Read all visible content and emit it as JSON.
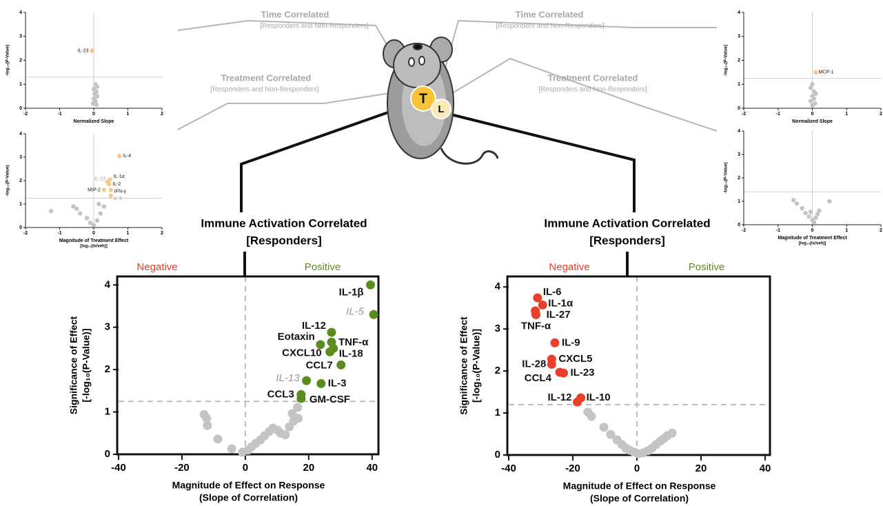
{
  "labels": {
    "time_left": {
      "title": "Time Correlated",
      "subtitle": "[Responders and Non-Responders]"
    },
    "time_right": {
      "title": "Time Correlated",
      "subtitle": "[Responders and Non-Responders]"
    },
    "treatment_left": {
      "title": "Treatment Correlated",
      "subtitle": "[Responders and Non-Responders]"
    },
    "treatment_right": {
      "title": "Treatment Correlated",
      "subtitle": "[Responders and Non-Responders]"
    },
    "mouse": {
      "tumor": "T",
      "lymph_node": "L"
    }
  },
  "chart_data": [
    {
      "type": "scatter",
      "title": "Immune Activation Correlated",
      "subtitle": "[Responders]",
      "negative_label": "Negative",
      "positive_label": "Positive",
      "negative_color": "#e8402a",
      "positive_color": "#5b8c1f",
      "xlabel": "Magnitude of Effect on Response",
      "xlabel2": "(Slope of Correlation)",
      "ylabel": "Significance of Effect",
      "ylabel2": "[-log₁₀(P-Value)]",
      "xlim": [
        -40,
        42
      ],
      "xticks": [
        -40,
        -20,
        0,
        20,
        40
      ],
      "ylim": [
        0,
        4.2
      ],
      "yticks": [
        0,
        1,
        2,
        3,
        4
      ],
      "threshold": 1.25,
      "xref": 0,
      "series": [
        {
          "color": "#5b8c1f",
          "labels": [
            "IL-1β",
            "IL-5",
            "IL-12",
            "Eotaxin",
            "TNF-α",
            "CXCL10",
            "IL-18",
            "CCL7",
            "IL-13",
            "IL-3",
            "CCL3",
            "GM-CSF"
          ],
          "label_muted": [
            false,
            true,
            false,
            false,
            false,
            false,
            false,
            false,
            true,
            false,
            false,
            false
          ],
          "x": [
            39.5,
            40.5,
            27.2,
            23.7,
            27.2,
            26.7,
            27.8,
            30.2,
            19.3,
            23.9,
            17.6,
            17.6
          ],
          "values": [
            4.0,
            3.3,
            2.88,
            2.59,
            2.65,
            2.42,
            2.5,
            2.11,
            1.74,
            1.67,
            1.41,
            1.32
          ]
        },
        {
          "color": "#c4c4c4",
          "x": [
            -13.0,
            -12.2,
            -12.0,
            -8.7,
            -4.3,
            -0.9,
            0.9,
            2.0,
            3.3,
            4.8,
            6.1,
            7.6,
            8.7,
            10.2,
            11.1,
            12.6,
            13.9,
            14.8,
            16.5,
            15.2,
            16.7
          ],
          "values": [
            0.94,
            0.85,
            0.68,
            0.36,
            0.13,
            0.05,
            0.1,
            0.18,
            0.26,
            0.34,
            0.44,
            0.54,
            0.62,
            0.57,
            0.5,
            0.46,
            0.65,
            0.96,
            1.11,
            0.78,
            0.85
          ]
        }
      ]
    },
    {
      "type": "scatter",
      "title": "Immune Activation Correlated",
      "subtitle": "[Responders]",
      "negative_label": "Negative",
      "positive_label": "Positive",
      "negative_color": "#e8402a",
      "positive_color": "#5b8c1f",
      "xlabel": "Magnitude of Effect on Response",
      "xlabel2": "(Slope of Correlation)",
      "ylabel": "Significance of Effect",
      "ylabel2": "[-log₁₀(P-Value)]",
      "xlim": [
        -40,
        41.5
      ],
      "xticks": [
        -40,
        -20,
        0,
        20,
        40
      ],
      "ylim": [
        0,
        4.25
      ],
      "yticks": [
        0,
        1,
        2,
        3,
        4
      ],
      "threshold": 1.2,
      "xref": 0,
      "series": [
        {
          "color": "#e8402a",
          "labels": [
            "IL-6",
            "IL-1α",
            "IL-27",
            "TNF-α",
            "IL-9",
            "CXCL5",
            "IL-28",
            "CCL4",
            "IL-23",
            "IL-12",
            "IL-10"
          ],
          "label_muted": [
            false,
            false,
            false,
            false,
            false,
            false,
            false,
            false,
            false,
            false,
            false
          ],
          "x": [
            -31.0,
            -29.4,
            -31.7,
            -31.5,
            -25.6,
            -26.6,
            -26.6,
            -24.1,
            -22.9,
            -18.6,
            -17.5
          ],
          "values": [
            3.74,
            3.57,
            3.43,
            3.34,
            2.67,
            2.28,
            2.16,
            1.97,
            1.95,
            1.26,
            1.36
          ]
        },
        {
          "color": "#c4c4c4",
          "x": [
            -15.3,
            -14.2,
            -10.3,
            -8.2,
            -6.2,
            -4.7,
            -3.4,
            -2.2,
            -0.9,
            0.4,
            1.9,
            3.4,
            4.7,
            6.0,
            7.3,
            8.4,
            9.5,
            11.0
          ],
          "values": [
            1.02,
            0.92,
            0.66,
            0.49,
            0.36,
            0.25,
            0.16,
            0.11,
            0.07,
            0.03,
            0.05,
            0.1,
            0.16,
            0.25,
            0.33,
            0.39,
            0.46,
            0.52
          ]
        }
      ]
    },
    {
      "type": "scatter",
      "xlabel": "Normalized Slope",
      "ylabel": "-log₁₀(P-Value)",
      "xlim": [
        -2,
        2
      ],
      "xticks": [
        -2,
        -1,
        0,
        1,
        2
      ],
      "ylim": [
        0,
        4
      ],
      "yticks": [
        0,
        1,
        2,
        3,
        4
      ],
      "threshold": 1.3,
      "xref": 0,
      "series": [
        {
          "color": "#f5c98a",
          "labels": [
            "IL-23"
          ],
          "label_muted": [
            false
          ],
          "x": [
            -0.05
          ],
          "values": [
            2.4
          ]
        },
        {
          "color": "#c4c4c4",
          "x": [
            0.05,
            0.1,
            0.0,
            0.08,
            0.02,
            0.1,
            0.0,
            0.05,
            -0.02,
            0.08
          ],
          "values": [
            1.0,
            0.9,
            0.8,
            0.7,
            0.6,
            0.5,
            0.4,
            0.3,
            0.2,
            0.15
          ]
        }
      ]
    },
    {
      "type": "scatter",
      "xlabel": "Magnitude of Treatment Effect",
      "xlabel2": "[log₁₀(tx/veh)]",
      "ylabel": "-log₁₀(P-Value)",
      "xlim": [
        -2,
        2
      ],
      "xticks": [
        -2,
        -1,
        0,
        1,
        2
      ],
      "ylim": [
        0,
        4
      ],
      "yticks": [
        0,
        1,
        2,
        3,
        4
      ],
      "threshold": 1.25,
      "xref": 0,
      "series": [
        {
          "color": "#f5c98a",
          "labels": [
            "IL-4",
            "IL-13",
            "IL-1α",
            "IL-2",
            "MIP-2",
            "IFN-γ",
            "IL-5"
          ],
          "label_muted": [
            false,
            true,
            false,
            false,
            false,
            false,
            true
          ],
          "x": [
            0.75,
            0.4,
            0.48,
            0.45,
            0.3,
            0.5,
            0.5
          ],
          "values": [
            3.05,
            1.95,
            2.05,
            1.85,
            1.6,
            1.6,
            1.35
          ]
        },
        {
          "color": "#c4c4c4",
          "x": [
            -1.25,
            -0.6,
            -0.5,
            -0.4,
            -0.2,
            -0.1,
            0.0,
            0.1,
            0.2,
            0.3,
            0.15
          ],
          "values": [
            0.7,
            0.9,
            0.8,
            0.6,
            0.4,
            0.2,
            0.1,
            0.3,
            0.6,
            0.9,
            1.0
          ]
        }
      ]
    },
    {
      "type": "scatter",
      "xlabel": "Normalized Slope",
      "ylabel": "-log₁₀(P-Value)",
      "xlim": [
        -2,
        2
      ],
      "xticks": [
        -2,
        -1,
        0,
        1,
        2
      ],
      "ylim": [
        0,
        4
      ],
      "yticks": [
        0,
        1,
        2,
        3,
        4
      ],
      "threshold": 1.25,
      "xref": 0,
      "series": [
        {
          "color": "#f5c98a",
          "labels": [
            "MCP-1"
          ],
          "label_muted": [
            false
          ],
          "x": [
            0.1
          ],
          "values": [
            1.5
          ]
        },
        {
          "color": "#c4c4c4",
          "x": [
            0.0,
            -0.05,
            0.05,
            0.1,
            0.0,
            0.05,
            -0.05,
            0.08,
            0.0
          ],
          "values": [
            1.0,
            0.85,
            0.7,
            0.6,
            0.5,
            0.4,
            0.3,
            0.2,
            0.12
          ]
        }
      ]
    },
    {
      "type": "scatter",
      "xlabel": "Magnitude of Treatment Effect",
      "xlabel2": "[log₁₀(tx/veh)]",
      "ylabel": "-log₁₀(P-Value)",
      "xlim": [
        -2,
        2
      ],
      "xticks": [
        -2,
        -1,
        0,
        1,
        2
      ],
      "ylim": [
        0,
        4
      ],
      "yticks": [
        0,
        1,
        2,
        3,
        4
      ],
      "threshold": 1.4,
      "xref": 0,
      "series": [
        {
          "color": "#c4c4c4",
          "x": [
            -0.55,
            -0.45,
            0.5,
            -0.3,
            -0.2,
            -0.1,
            0.0,
            0.05,
            0.1,
            0.2,
            -0.05,
            0.15
          ],
          "values": [
            1.05,
            0.9,
            1.0,
            0.7,
            0.5,
            0.35,
            0.2,
            0.1,
            0.3,
            0.6,
            0.55,
            0.45
          ]
        }
      ]
    }
  ]
}
